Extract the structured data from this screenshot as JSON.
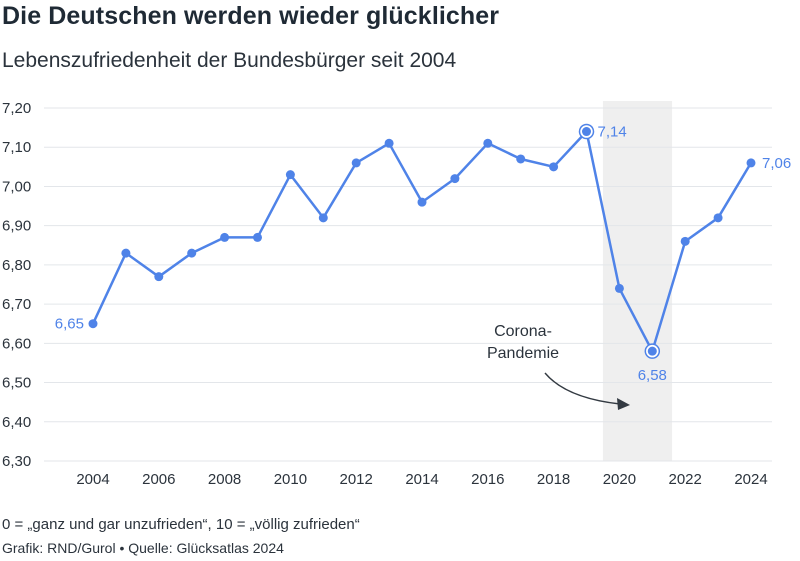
{
  "title": "Die Deutschen werden wieder glücklicher",
  "subtitle": "Lebenszufriedenheit der Bundesbürger seit 2004",
  "note": "0 = „ganz und gar unzufrieden“, 10 = „völlig zufrieden“",
  "source": "Grafik: RND/Gurol • Quelle: Glücksatlas 2024",
  "colors": {
    "line": "#4f83e8",
    "grid": "#e3e6ea",
    "shade": "#efefef",
    "text": "#2b333c"
  },
  "chart_data": {
    "type": "line",
    "x": [
      2004,
      2005,
      2006,
      2007,
      2008,
      2009,
      2010,
      2011,
      2012,
      2013,
      2014,
      2015,
      2016,
      2017,
      2018,
      2019,
      2020,
      2021,
      2022,
      2023,
      2024
    ],
    "series": [
      {
        "values": [
          6.65,
          6.83,
          6.77,
          6.83,
          6.87,
          6.87,
          7.03,
          6.92,
          7.06,
          7.11,
          6.96,
          7.02,
          7.11,
          7.07,
          7.05,
          7.14,
          6.74,
          6.58,
          6.86,
          6.92,
          7.06
        ]
      }
    ],
    "ylim": [
      6.3,
      7.2
    ],
    "yticks": [
      "6,30",
      "6,40",
      "6,50",
      "6,60",
      "6,70",
      "6,80",
      "6,90",
      "7,00",
      "7,10",
      "7,20"
    ],
    "xticks": [
      "2004",
      "2006",
      "2008",
      "2010",
      "2012",
      "2014",
      "2016",
      "2018",
      "2020",
      "2022",
      "2024"
    ],
    "shaded_range": [
      2019.5,
      2021.6
    ],
    "data_labels": [
      {
        "x": 2004,
        "text": "6,65",
        "side": "left"
      },
      {
        "x": 2019,
        "text": "7,14",
        "side": "right",
        "highlight": true
      },
      {
        "x": 2021,
        "text": "6,58",
        "side": "below",
        "highlight": true
      },
      {
        "x": 2024,
        "text": "7,06",
        "side": "right"
      }
    ],
    "annotation": {
      "lines": [
        "Corona-",
        "Pandemie"
      ]
    },
    "grid": true
  }
}
